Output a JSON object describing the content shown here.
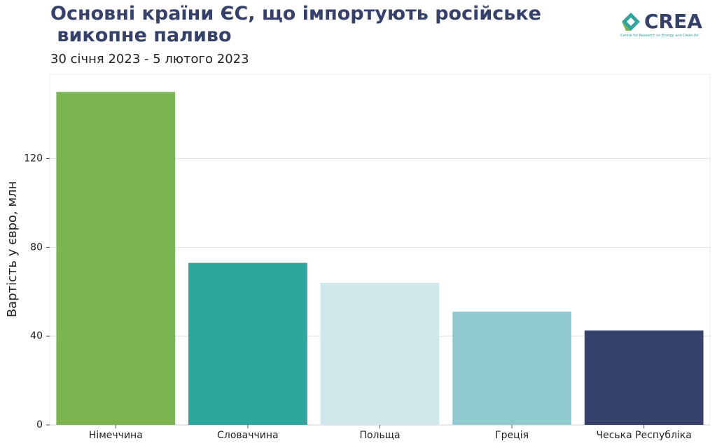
{
  "chart_data": {
    "type": "bar",
    "title": "Основні країни ЄС, що імпортують російське\n викопне паливо",
    "subtitle": "30 січня 2023 - 5 лютого 2023",
    "y_label": "Вартість у євро, млн",
    "categories": [
      "Німеччина",
      "Словаччина",
      "Польща",
      "Греція",
      "Чеська Республіка"
    ],
    "values": [
      150,
      73,
      64,
      51,
      42.5
    ],
    "colors": [
      "#7ab551",
      "#2ea69d",
      "#d0e8ec",
      "#91c9d1",
      "#35416b"
    ],
    "ylim": [
      0,
      158
    ],
    "yticks": [
      0,
      40,
      80,
      120
    ],
    "grid": true
  },
  "logo": {
    "name": "CREA",
    "subtitle": "Centre for Research on Energy and Clean Air"
  }
}
